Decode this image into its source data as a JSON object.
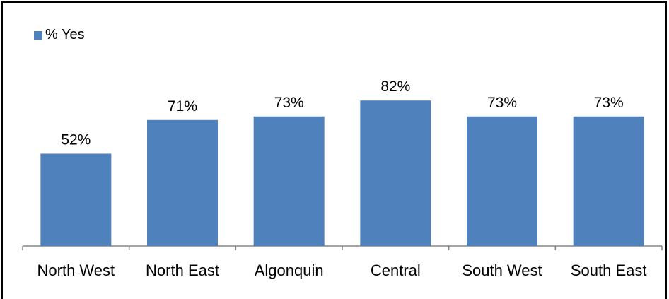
{
  "chart_data": {
    "type": "bar",
    "title": "",
    "xlabel": "",
    "ylabel": "",
    "categories": [
      "North West",
      "North East",
      "Algonquin",
      "Central",
      "South West",
      "South East"
    ],
    "series": [
      {
        "name": "% Yes",
        "values": [
          52,
          71,
          73,
          82,
          73,
          73
        ],
        "labels": [
          "52%",
          "71%",
          "73%",
          "82%",
          "73%",
          "73%"
        ],
        "color": "#4f81bd"
      }
    ],
    "ylim": [
      0,
      90
    ],
    "grid": false,
    "legend_position": "top-left"
  }
}
